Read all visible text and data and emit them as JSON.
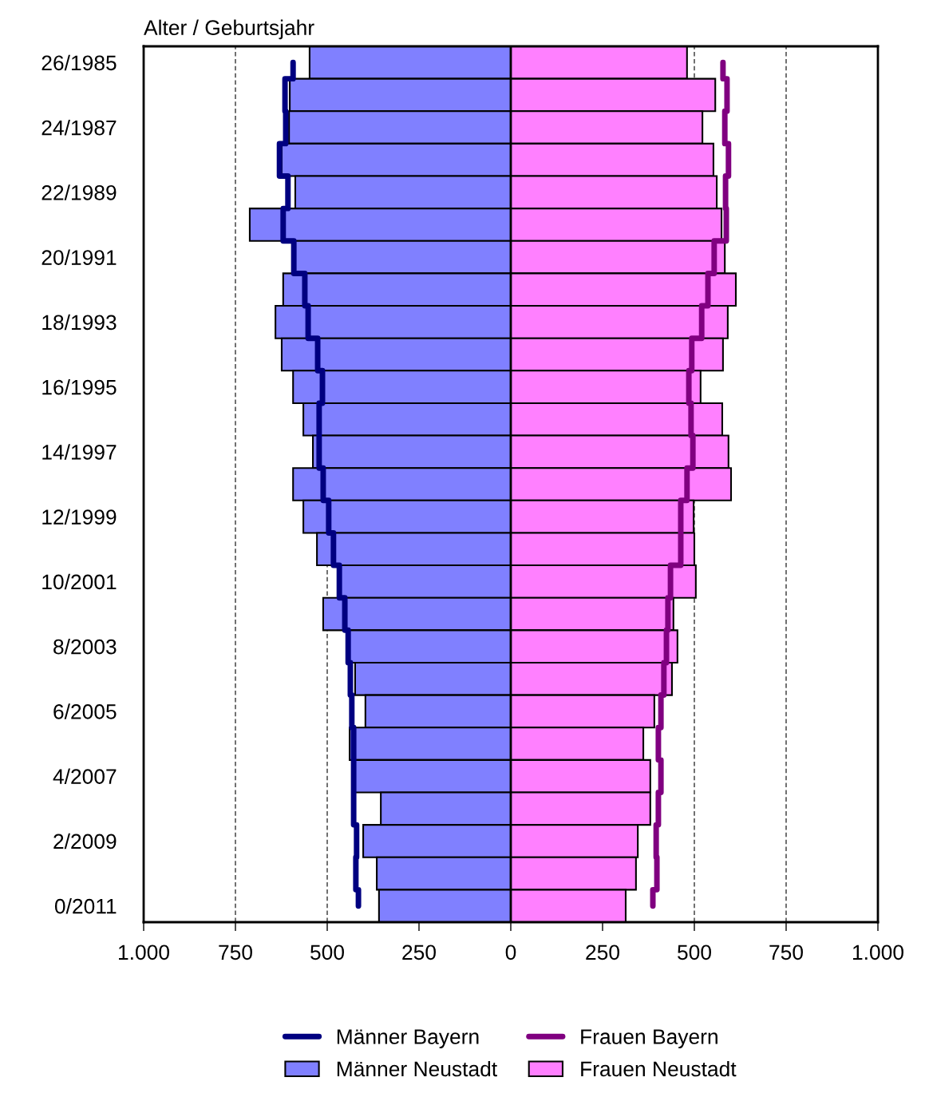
{
  "chart_data": {
    "type": "bar",
    "orientation": "horizontal",
    "ylabel": "Alter / Geburtsjahr",
    "categories": [
      "26/1985",
      null,
      "24/1987",
      null,
      "22/1989",
      null,
      "20/1991",
      null,
      "18/1993",
      null,
      "16/1995",
      null,
      "14/1997",
      null,
      "12/1999",
      null,
      "10/2001",
      null,
      "8/2003",
      null,
      "6/2005",
      null,
      "4/2007",
      null,
      "2/2009",
      null,
      "0/2011"
    ],
    "series": [
      {
        "name": "Männer Neustadt",
        "color": "#8080ff",
        "values": [
          -548,
          -602,
          -604,
          -624,
          -587,
          -711,
          -587,
          -620,
          -641,
          -624,
          -593,
          -565,
          -539,
          -593,
          -565,
          -528,
          -467,
          -511,
          -441,
          -424,
          -396,
          -439,
          -424,
          -354,
          -402,
          -365,
          -359
        ]
      },
      {
        "name": "Frauen Neustadt",
        "color": "#ff80ff",
        "values": [
          480,
          557,
          522,
          552,
          561,
          574,
          583,
          613,
          591,
          578,
          517,
          576,
          593,
          600,
          498,
          500,
          504,
          443,
          454,
          439,
          391,
          361,
          380,
          380,
          346,
          341,
          313
        ]
      },
      {
        "name": "Männer Bayern",
        "type": "step",
        "color": "#000080",
        "values": [
          -593,
          -615,
          -613,
          -630,
          -607,
          -620,
          -591,
          -561,
          -552,
          -526,
          -513,
          -522,
          -522,
          -511,
          -496,
          -483,
          -467,
          -452,
          -443,
          -437,
          -433,
          -428,
          -428,
          -428,
          -420,
          -422,
          -415
        ]
      },
      {
        "name": "Frauen Bayern",
        "type": "step",
        "color": "#800080",
        "values": [
          578,
          589,
          583,
          593,
          585,
          587,
          554,
          537,
          520,
          493,
          485,
          491,
          496,
          480,
          463,
          463,
          435,
          428,
          424,
          417,
          409,
          402,
          409,
          402,
          396,
          398,
          387
        ]
      }
    ],
    "xlim": [
      -1000,
      1000
    ],
    "xticks": [
      {
        "value": -1000,
        "label": "1.000"
      },
      {
        "value": -750,
        "label": "750"
      },
      {
        "value": -500,
        "label": "500"
      },
      {
        "value": -250,
        "label": "250"
      },
      0,
      250,
      500,
      750,
      {
        "value": 1000,
        "label": "1.000"
      }
    ],
    "grid": "x",
    "legend": "bottom",
    "stacked": true
  }
}
